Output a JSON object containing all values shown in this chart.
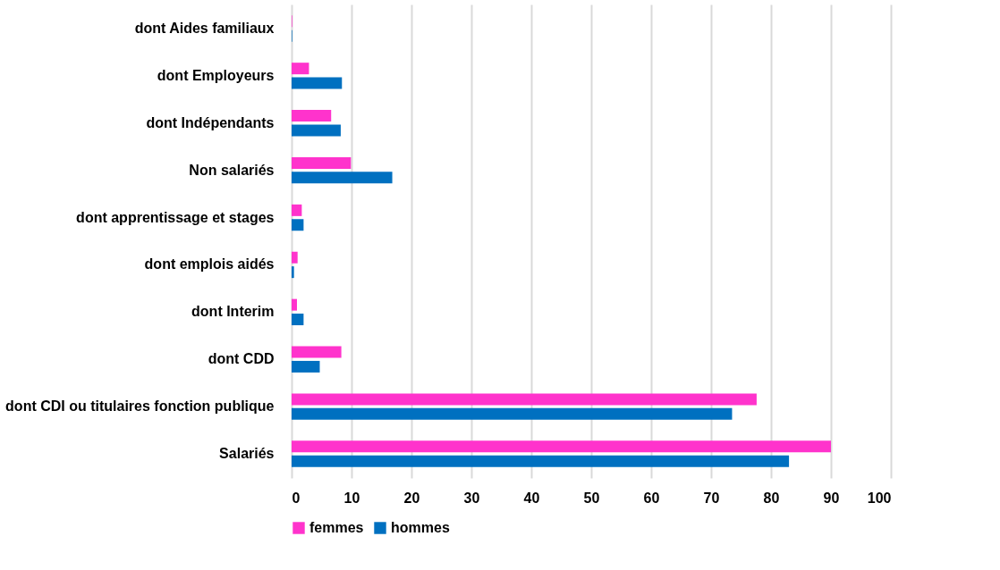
{
  "chart_data": {
    "type": "bar",
    "orientation": "horizontal",
    "categories": [
      "dont Aides familiaux",
      "dont Employeurs",
      "dont Indépendants",
      "Non salariés",
      "dont apprentissage et stages",
      "dont emplois aidés",
      "dont Interim",
      "dont CDD",
      "dont CDI ou titulaires fonction publique",
      "Salariés"
    ],
    "series": [
      {
        "name": "femmes",
        "color": "#ff33cc",
        "values": [
          0.1,
          2.9,
          6.6,
          9.9,
          1.7,
          1.0,
          0.9,
          8.3,
          77.6,
          90.0
        ]
      },
      {
        "name": "hommes",
        "color": "#0070c0",
        "values": [
          0.1,
          8.4,
          8.2,
          16.8,
          2.0,
          0.4,
          2.0,
          4.7,
          73.5,
          83.0
        ]
      }
    ],
    "xlim": [
      0,
      100
    ],
    "xticks": [
      0,
      10,
      20,
      30,
      40,
      50,
      60,
      70,
      80,
      90,
      100
    ],
    "grid": "x",
    "legend": "bottom"
  }
}
